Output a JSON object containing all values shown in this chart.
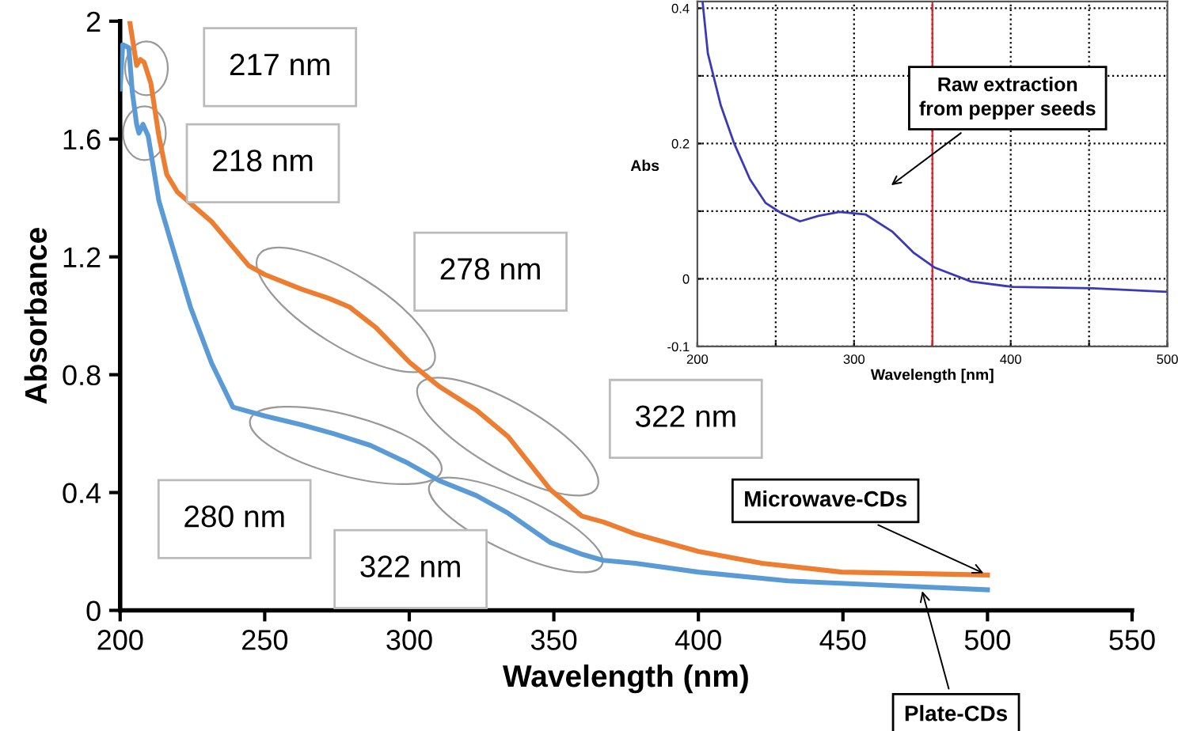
{
  "chart_data": [
    {
      "type": "line",
      "xlabel": "Wavelength (nm)",
      "ylabel": "Absorbance",
      "xlim": [
        200,
        550
      ],
      "ylim": [
        0,
        2
      ],
      "xticks": [
        200,
        250,
        300,
        350,
        400,
        450,
        500,
        550
      ],
      "yticks": [
        0,
        0.4,
        0.8,
        1.2,
        1.6,
        2
      ],
      "grid": false,
      "legend": false,
      "series": [
        {
          "name": "Microwave-CDs",
          "color": "#ed7d31",
          "x": [
            203.3,
            205.7,
            207,
            208.3,
            210.6,
            213.4,
            216.1,
            219.8,
            231.6,
            244.5,
            250,
            262.8,
            272,
            279.3,
            288.5,
            300.3,
            310.4,
            323.2,
            334.2,
            348.8,
            359.7,
            367.2,
            378,
            400,
            422,
            449.6,
            500
          ],
          "values": [
            2.0,
            1.85,
            1.87,
            1.86,
            1.79,
            1.61,
            1.48,
            1.42,
            1.32,
            1.17,
            1.14,
            1.09,
            1.06,
            1.03,
            0.96,
            0.84,
            0.76,
            0.68,
            0.59,
            0.41,
            0.32,
            0.3,
            0.26,
            0.2,
            0.16,
            0.13,
            0.12
          ]
        },
        {
          "name": "Plate-CDs",
          "color": "#5b9bd5",
          "x": [
            200,
            200.9,
            203,
            204.2,
            205.7,
            206.5,
            207.9,
            209.7,
            213.4,
            217,
            224.3,
            231.6,
            239,
            250,
            262.8,
            273.8,
            286.6,
            299.5,
            310.4,
            323.2,
            334.2,
            348.9,
            359.9,
            367,
            378.2,
            400,
            431,
            477,
            500
          ],
          "values": [
            1.77,
            1.92,
            1.91,
            1.76,
            1.65,
            1.62,
            1.65,
            1.61,
            1.39,
            1.27,
            1.03,
            0.84,
            0.69,
            0.66,
            0.63,
            0.6,
            0.56,
            0.5,
            0.44,
            0.39,
            0.33,
            0.23,
            0.19,
            0.17,
            0.16,
            0.13,
            0.1,
            0.08,
            0.07
          ]
        }
      ],
      "annotations": [
        "217 nm",
        "218 nm",
        "278 nm",
        "322 nm",
        "280 nm",
        "322 nm"
      ]
    },
    {
      "type": "line",
      "xlabel": "Wavelength [nm]",
      "ylabel": "Abs",
      "xlim": [
        200,
        500
      ],
      "ylim": [
        -0.1,
        0.41
      ],
      "xticks": [
        200,
        {
          "value": 250,
          "label": null
        },
        300,
        {
          "value": 350,
          "label": null
        },
        400,
        {
          "value": 450,
          "label": null
        },
        500
      ],
      "yticks": [
        -0.1,
        0,
        {
          "value": 0.1,
          "label": null
        },
        0.2,
        {
          "value": 0.3,
          "label": null
        },
        0.4
      ],
      "grid": true,
      "legend": false,
      "ref_lines": [
        {
          "axis": "x",
          "value": 350,
          "color": "#e8202a"
        }
      ],
      "series": [
        {
          "name": "Raw extraction from pepper seeds",
          "color": "#3a3ab8",
          "x": [
            203.3,
            206.7,
            215,
            223.5,
            233.6,
            243.6,
            253.7,
            265.5,
            277.3,
            290.7,
            307.5,
            324.3,
            337.8,
            351.2,
            374.7,
            401.5,
            452,
            499
          ],
          "values": [
            0.41,
            0.333,
            0.256,
            0.2,
            0.147,
            0.112,
            0.097,
            0.085,
            0.093,
            0.099,
            0.095,
            0.07,
            0.039,
            0.017,
            -0.004,
            -0.012,
            -0.014,
            -0.019
          ]
        }
      ]
    }
  ]
}
